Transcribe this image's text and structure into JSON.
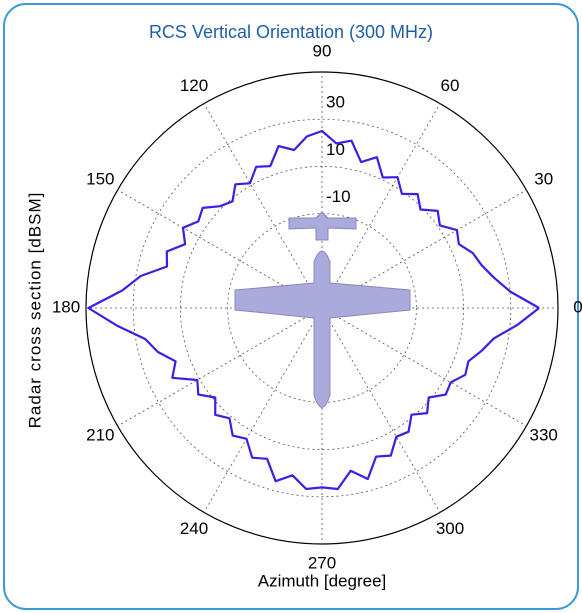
{
  "chart_data": {
    "type": "polar",
    "title": "RCS Vertical Orientation (300 MHz)",
    "xlabel": "Azimuth [degree]",
    "ylabel": "Radar cross section [dBSM]",
    "theta": [
      0,
      5,
      10,
      15,
      20,
      25,
      30,
      35,
      40,
      45,
      50,
      55,
      60,
      65,
      70,
      75,
      80,
      85,
      90,
      95,
      100,
      105,
      110,
      115,
      120,
      125,
      130,
      135,
      140,
      145,
      150,
      155,
      160,
      165,
      170,
      175,
      180,
      185,
      190,
      195,
      200,
      205,
      210,
      215,
      220,
      225,
      230,
      235,
      240,
      245,
      250,
      255,
      260,
      265,
      270,
      275,
      280,
      285,
      290,
      295,
      300,
      305,
      310,
      315,
      320,
      325,
      330,
      335,
      340,
      345,
      350,
      355
    ],
    "values": [
      42,
      30,
      24,
      20,
      18,
      14,
      16,
      11,
      14,
      9,
      13,
      9,
      14,
      11,
      18,
      14,
      22,
      20,
      25,
      23,
      18,
      21,
      14,
      16,
      11,
      14,
      9,
      11,
      16,
      14,
      18,
      14,
      20,
      18,
      28,
      35,
      49,
      37,
      26,
      22,
      16,
      20,
      11,
      14,
      9,
      14,
      11,
      16,
      14,
      20,
      18,
      26,
      22,
      27,
      26,
      27,
      20,
      25,
      17,
      19,
      13,
      14,
      9,
      13,
      9,
      14,
      13,
      17,
      16,
      20,
      24,
      33
    ],
    "color": "#3a1fe6",
    "rlim": [
      -50,
      50
    ],
    "rticks": [
      -10,
      10,
      30
    ],
    "thetaticks": [
      0,
      30,
      60,
      90,
      120,
      150,
      180,
      210,
      240,
      270,
      300,
      330
    ],
    "grid": true
  }
}
